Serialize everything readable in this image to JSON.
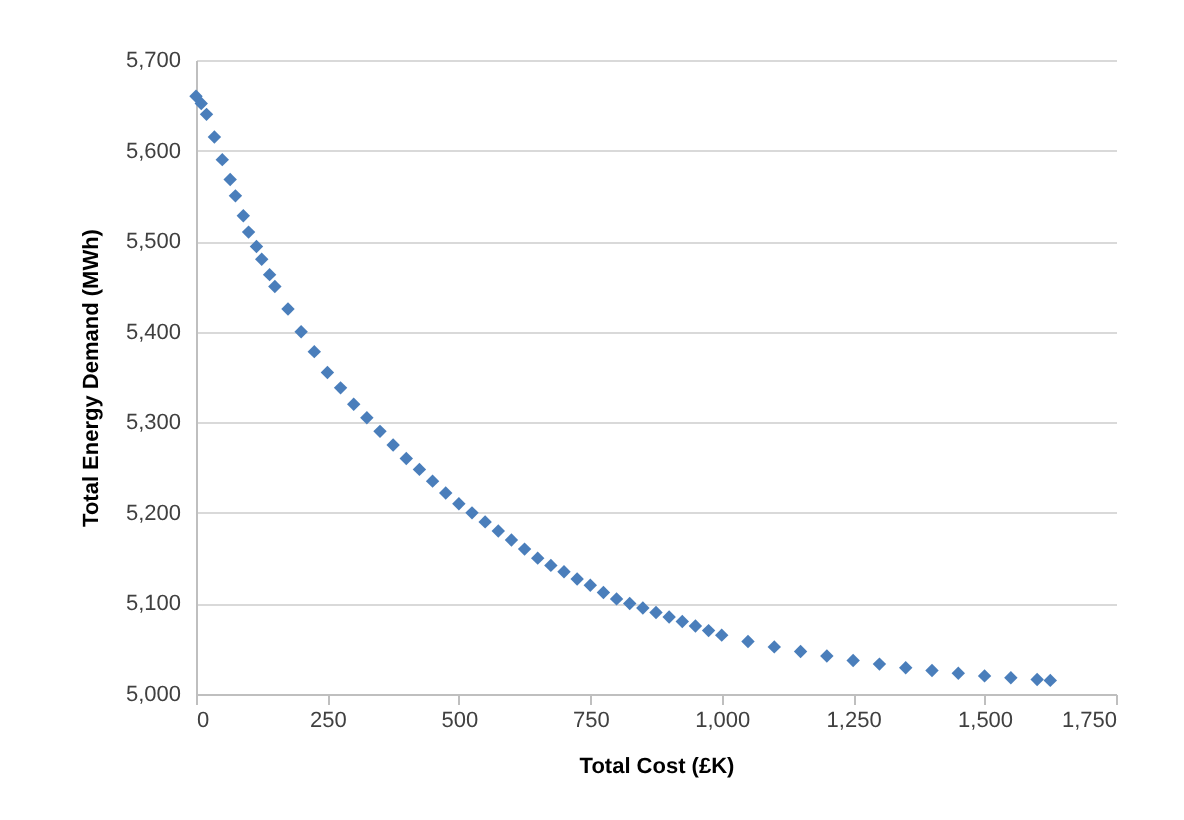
{
  "chart_data": {
    "type": "scatter",
    "xlabel": "Total Cost (£K)",
    "ylabel": "Total Energy Demand (MWh)",
    "xlim": [
      0,
      1750
    ],
    "xticks": [
      {
        "value": 0,
        "label": "0"
      },
      {
        "value": 250,
        "label": "250"
      },
      {
        "value": 500,
        "label": "500"
      },
      {
        "value": 750,
        "label": "750"
      },
      {
        "value": 1000,
        "label": "1,000"
      },
      {
        "value": 1250,
        "label": "1,250"
      },
      {
        "value": 1500,
        "label": "1,500"
      },
      {
        "value": 1750,
        "label": "1,750"
      }
    ],
    "ylim": [
      5000,
      5700
    ],
    "yticks": [
      {
        "value": 5000,
        "label": "5,000"
      },
      {
        "value": 5100,
        "label": "5,100"
      },
      {
        "value": 5200,
        "label": "5,200"
      },
      {
        "value": 5300,
        "label": "5,300"
      },
      {
        "value": 5400,
        "label": "5,400"
      },
      {
        "value": 5500,
        "label": "5,500"
      },
      {
        "value": 5600,
        "label": "5,600"
      },
      {
        "value": 5700,
        "label": "5,700"
      }
    ],
    "grid": "y",
    "marker": "diamond",
    "legend": false,
    "series": [
      {
        "color": "#4a7ebb",
        "x": [
          0,
          10,
          20,
          35,
          50,
          65,
          75,
          90,
          100,
          115,
          125,
          140,
          150,
          175,
          200,
          225,
          250,
          275,
          300,
          325,
          350,
          375,
          400,
          425,
          450,
          475,
          500,
          525,
          550,
          575,
          600,
          625,
          650,
          675,
          700,
          725,
          750,
          775,
          800,
          825,
          850,
          875,
          900,
          925,
          950,
          975,
          1000,
          1050,
          1100,
          1150,
          1200,
          1250,
          1300,
          1350,
          1400,
          1450,
          1500,
          1550,
          1600,
          1625
        ],
        "values": [
          5660,
          5652,
          5640,
          5615,
          5590,
          5568,
          5550,
          5528,
          5510,
          5494,
          5480,
          5463,
          5450,
          5425,
          5400,
          5378,
          5355,
          5338,
          5320,
          5305,
          5290,
          5275,
          5260,
          5248,
          5235,
          5222,
          5210,
          5200,
          5190,
          5180,
          5170,
          5160,
          5150,
          5142,
          5135,
          5127,
          5120,
          5112,
          5105,
          5100,
          5095,
          5090,
          5085,
          5080,
          5075,
          5070,
          5065,
          5058,
          5052,
          5047,
          5042,
          5037,
          5033,
          5029,
          5026,
          5023,
          5020,
          5018,
          5016,
          5015
        ]
      }
    ]
  }
}
